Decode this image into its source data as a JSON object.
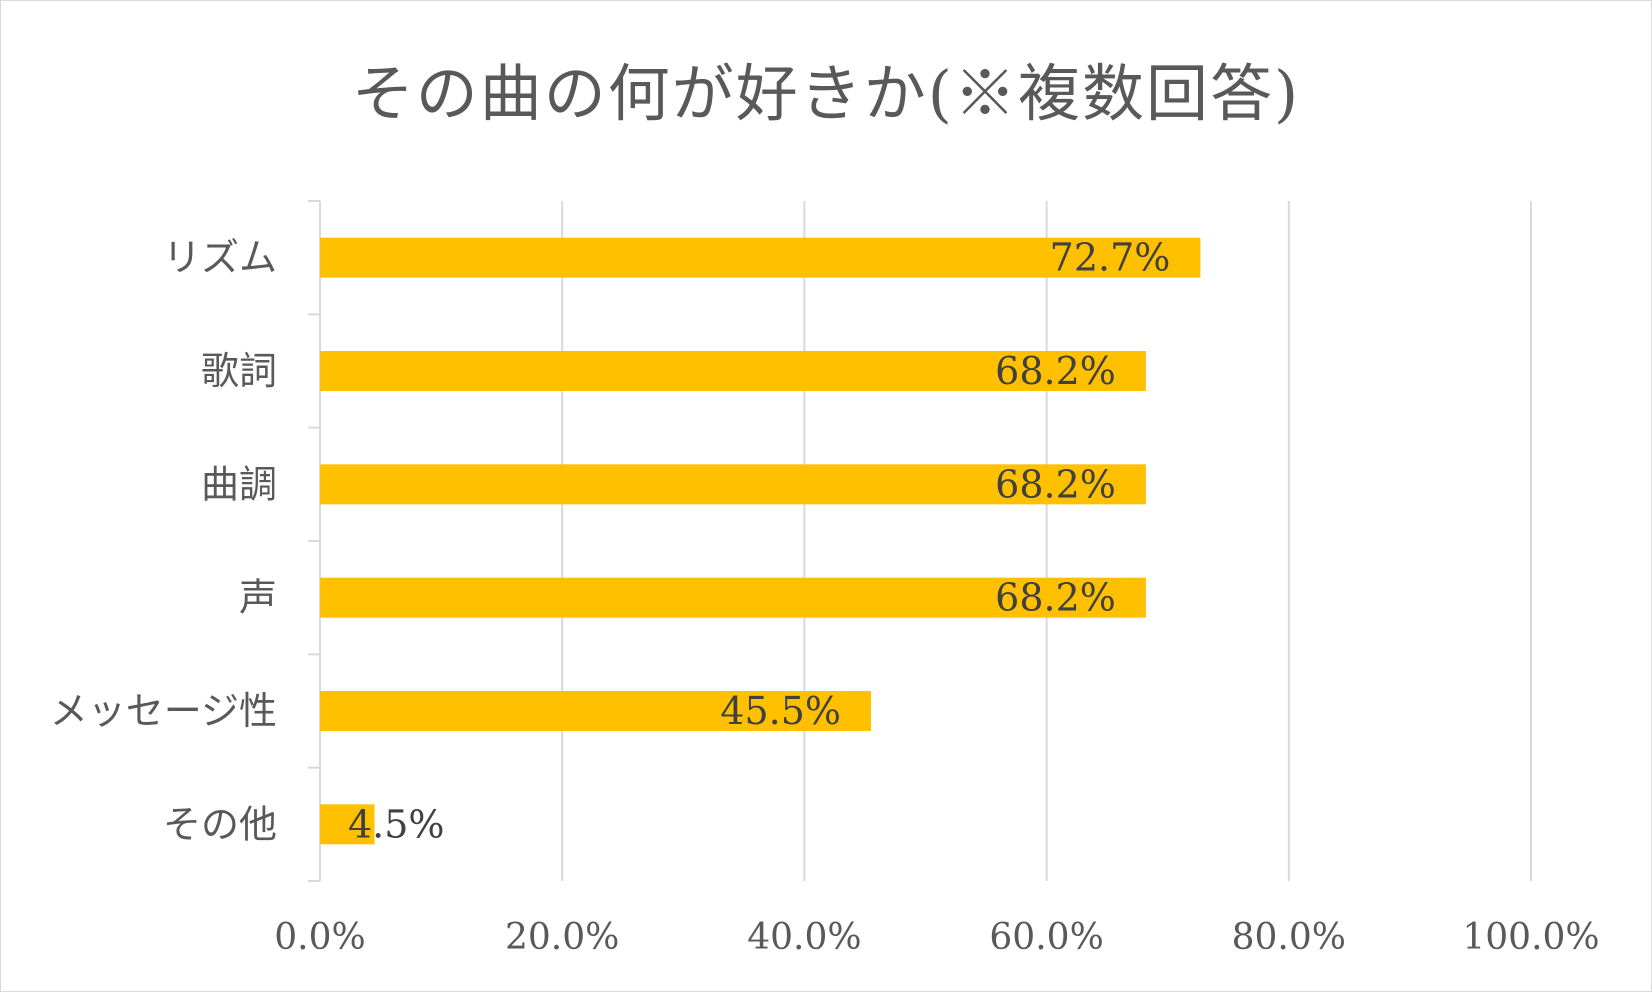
{
  "chart_data": {
    "type": "bar",
    "orientation": "horizontal",
    "title": "その曲の何が好きか(※複数回答)",
    "categories": [
      "リズム",
      "歌詞",
      "曲調",
      "声",
      "メッセージ性",
      "その他"
    ],
    "values": [
      72.7,
      68.2,
      68.2,
      68.2,
      45.5,
      4.5
    ],
    "data_labels": [
      "72.7%",
      "68.2%",
      "68.2%",
      "68.2%",
      "45.5%",
      "4.5%"
    ],
    "xlim": [
      0,
      100
    ],
    "x_ticks": [
      0,
      20,
      40,
      60,
      80,
      100
    ],
    "x_tick_labels": [
      "0.0%",
      "20.0%",
      "40.0%",
      "60.0%",
      "80.0%",
      "100.0%"
    ],
    "grid": "vertical",
    "legend": "none",
    "bar_color": "#FFC000",
    "grid_color": "#d9d9d9",
    "text_color": "#595959"
  }
}
